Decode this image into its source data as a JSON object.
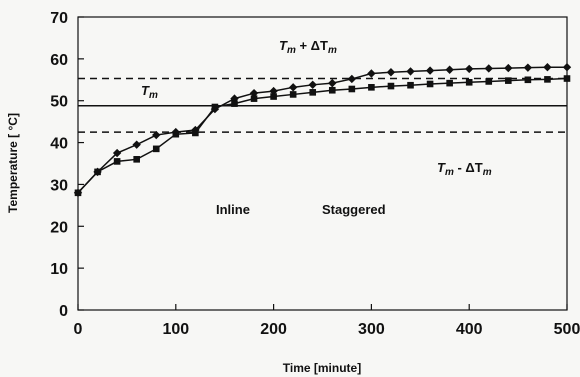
{
  "chart_data": {
    "type": "line",
    "xlabel": "Time [minute]",
    "ylabel": "Temperature [ °C]",
    "xlim": [
      0,
      500
    ],
    "ylim": [
      0,
      70
    ],
    "xticks": [
      0,
      100,
      200,
      300,
      400,
      500
    ],
    "yticks": [
      0,
      10,
      20,
      30,
      40,
      50,
      60,
      70
    ],
    "grid": false,
    "legend": "none",
    "series": [
      {
        "marker": "diamond",
        "x": [
          0,
          20,
          40,
          60,
          80,
          100,
          120,
          140,
          160,
          180,
          200,
          220,
          240,
          260,
          280,
          300,
          320,
          340,
          360,
          380,
          400,
          420,
          440,
          460,
          480,
          500
        ],
        "values": [
          28,
          33,
          37.5,
          39.5,
          41.8,
          42.5,
          43,
          48,
          50.5,
          51.8,
          52.3,
          53.2,
          53.8,
          54.2,
          55.2,
          56.5,
          56.8,
          57,
          57.2,
          57.4,
          57.6,
          57.7,
          57.8,
          57.9,
          58,
          58
        ]
      },
      {
        "marker": "square",
        "x": [
          0,
          20,
          40,
          60,
          80,
          100,
          120,
          140,
          160,
          180,
          200,
          220,
          240,
          260,
          280,
          300,
          320,
          340,
          360,
          380,
          400,
          420,
          440,
          460,
          480,
          500
        ],
        "values": [
          28,
          33,
          35.5,
          36,
          38.5,
          42,
          42.3,
          48.5,
          49.3,
          50.5,
          51,
          51.5,
          52,
          52.5,
          52.8,
          53.2,
          53.5,
          53.7,
          54,
          54.2,
          54.4,
          54.6,
          54.8,
          55,
          55.1,
          55.3
        ]
      }
    ],
    "reference_lines": [
      {
        "y": 55.3,
        "style": "dashed"
      },
      {
        "y": 48.8,
        "style": "solid"
      },
      {
        "y": 42.5,
        "style": "dashed"
      }
    ],
    "annotations": {
      "tm_upper_base": "T",
      "tm_upper_sub": "m",
      "tm_upper_mid": " + ΔT",
      "tm_upper_sub2": "m",
      "tm_base": "T",
      "tm_sub": "m",
      "tm_lower_base": "T",
      "tm_lower_sub": "m",
      "tm_lower_mid": " - ΔT",
      "tm_lower_sub2": "m",
      "inline": "Inline",
      "staggered": "Staggered"
    }
  }
}
